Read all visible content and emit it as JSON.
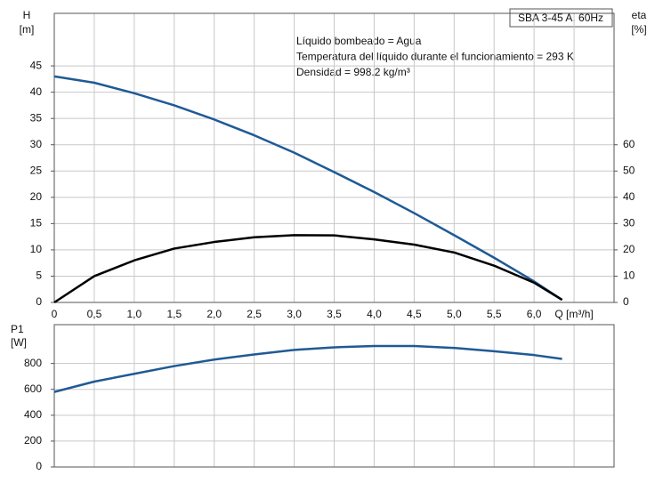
{
  "chart_data": [
    {
      "type": "line",
      "title": "SBA 3-45 A, 60Hz",
      "annotations": [
        "Líquido bombeado = Agua",
        "Temperatura del líquido durante el funcionamiento = 293 K",
        "Densidad = 998.2 kg/m³"
      ],
      "y_label": "H",
      "y_unit": "[m]",
      "y2_label": "eta",
      "y2_unit": "[%]",
      "x": [
        0,
        0.5,
        1.0,
        1.5,
        2.0,
        2.5,
        3.0,
        3.5,
        4.0,
        4.5,
        5.0,
        5.5,
        6.0,
        6.35
      ],
      "series": [
        {
          "color": "#1f5a96",
          "axis": "y",
          "values": [
            43,
            41.8,
            39.8,
            37.5,
            34.8,
            31.8,
            28.5,
            24.8,
            21,
            17,
            12.8,
            8.5,
            4,
            0.5
          ]
        },
        {
          "color": "#000000",
          "axis": "y2",
          "values": [
            0,
            10,
            16,
            20.5,
            23,
            24.8,
            25.6,
            25.5,
            24,
            22,
            19,
            14,
            7.5,
            1
          ]
        }
      ],
      "xlim": [
        0,
        7
      ],
      "xticks": [
        0,
        {
          "value": 0.5,
          "label": "0,5"
        },
        {
          "value": 1.0,
          "label": "1,0"
        },
        {
          "value": 1.5,
          "label": "1,5"
        },
        {
          "value": 2.0,
          "label": "2,0"
        },
        {
          "value": 2.5,
          "label": "2,5"
        },
        {
          "value": 3.0,
          "label": "3,0"
        },
        {
          "value": 3.5,
          "label": "3,5"
        },
        {
          "value": 4.0,
          "label": "4,0"
        },
        {
          "value": 4.5,
          "label": "4,5"
        },
        {
          "value": 5.0,
          "label": "5,0"
        },
        {
          "value": 5.5,
          "label": "5,5"
        },
        {
          "value": 6.0,
          "label": "6,0"
        },
        {
          "value": 6.5,
          "label": "Q [m³/h]"
        }
      ],
      "ylim": [
        0,
        55
      ],
      "yticks": [
        0,
        5,
        10,
        15,
        20,
        25,
        30,
        35,
        40,
        45
      ],
      "y2lim": [
        0,
        110
      ],
      "y2ticks": [
        0,
        10,
        20,
        30,
        40,
        50,
        60
      ],
      "grid": true
    },
    {
      "type": "line",
      "y_label": "P1",
      "y_unit": "[W]",
      "x": [
        0,
        0.5,
        1.0,
        1.5,
        2.0,
        2.5,
        3.0,
        3.5,
        4.0,
        4.5,
        5.0,
        5.5,
        6.0,
        6.35
      ],
      "series": [
        {
          "color": "#1f5a96",
          "axis": "y",
          "values": [
            580,
            660,
            720,
            780,
            830,
            870,
            905,
            925,
            935,
            935,
            920,
            895,
            865,
            835
          ]
        }
      ],
      "xlim": [
        0,
        7
      ],
      "ylim": [
        0,
        1100
      ],
      "yticks": [
        0,
        200,
        400,
        600,
        800
      ],
      "grid": true
    }
  ]
}
